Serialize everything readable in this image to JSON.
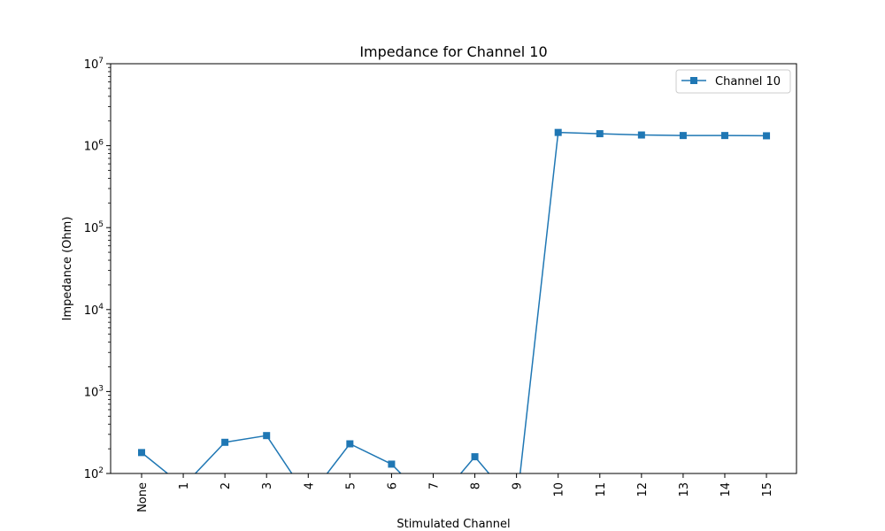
{
  "chart_data": {
    "type": "line",
    "title": "Impedance for Channel 10",
    "xlabel": "Stimulated Channel",
    "ylabel": "Impedance (Ohm)",
    "yscale": "log",
    "ylim": [
      100,
      10000000
    ],
    "y_ticks": [
      {
        "value": 100,
        "base": "10",
        "exp": "2"
      },
      {
        "value": 1000,
        "base": "10",
        "exp": "3"
      },
      {
        "value": 10000,
        "base": "10",
        "exp": "4"
      },
      {
        "value": 100000,
        "base": "10",
        "exp": "5"
      },
      {
        "value": 1000000,
        "base": "10",
        "exp": "6"
      },
      {
        "value": 10000000,
        "base": "10",
        "exp": "7"
      }
    ],
    "categories": [
      "None",
      "1",
      "2",
      "3",
      "4",
      "5",
      "6",
      "7",
      "8",
      "9",
      "10",
      "11",
      "12",
      "13",
      "14",
      "15"
    ],
    "grid": false,
    "legend_position": "upper-right",
    "series": [
      {
        "name": "Channel 10",
        "color": "#1f77b4",
        "marker": "square",
        "values": [
          180,
          70,
          240,
          290,
          50,
          230,
          130,
          40,
          160,
          40,
          1450000,
          1400000,
          1350000,
          1330000,
          1330000,
          1320000
        ]
      }
    ]
  }
}
